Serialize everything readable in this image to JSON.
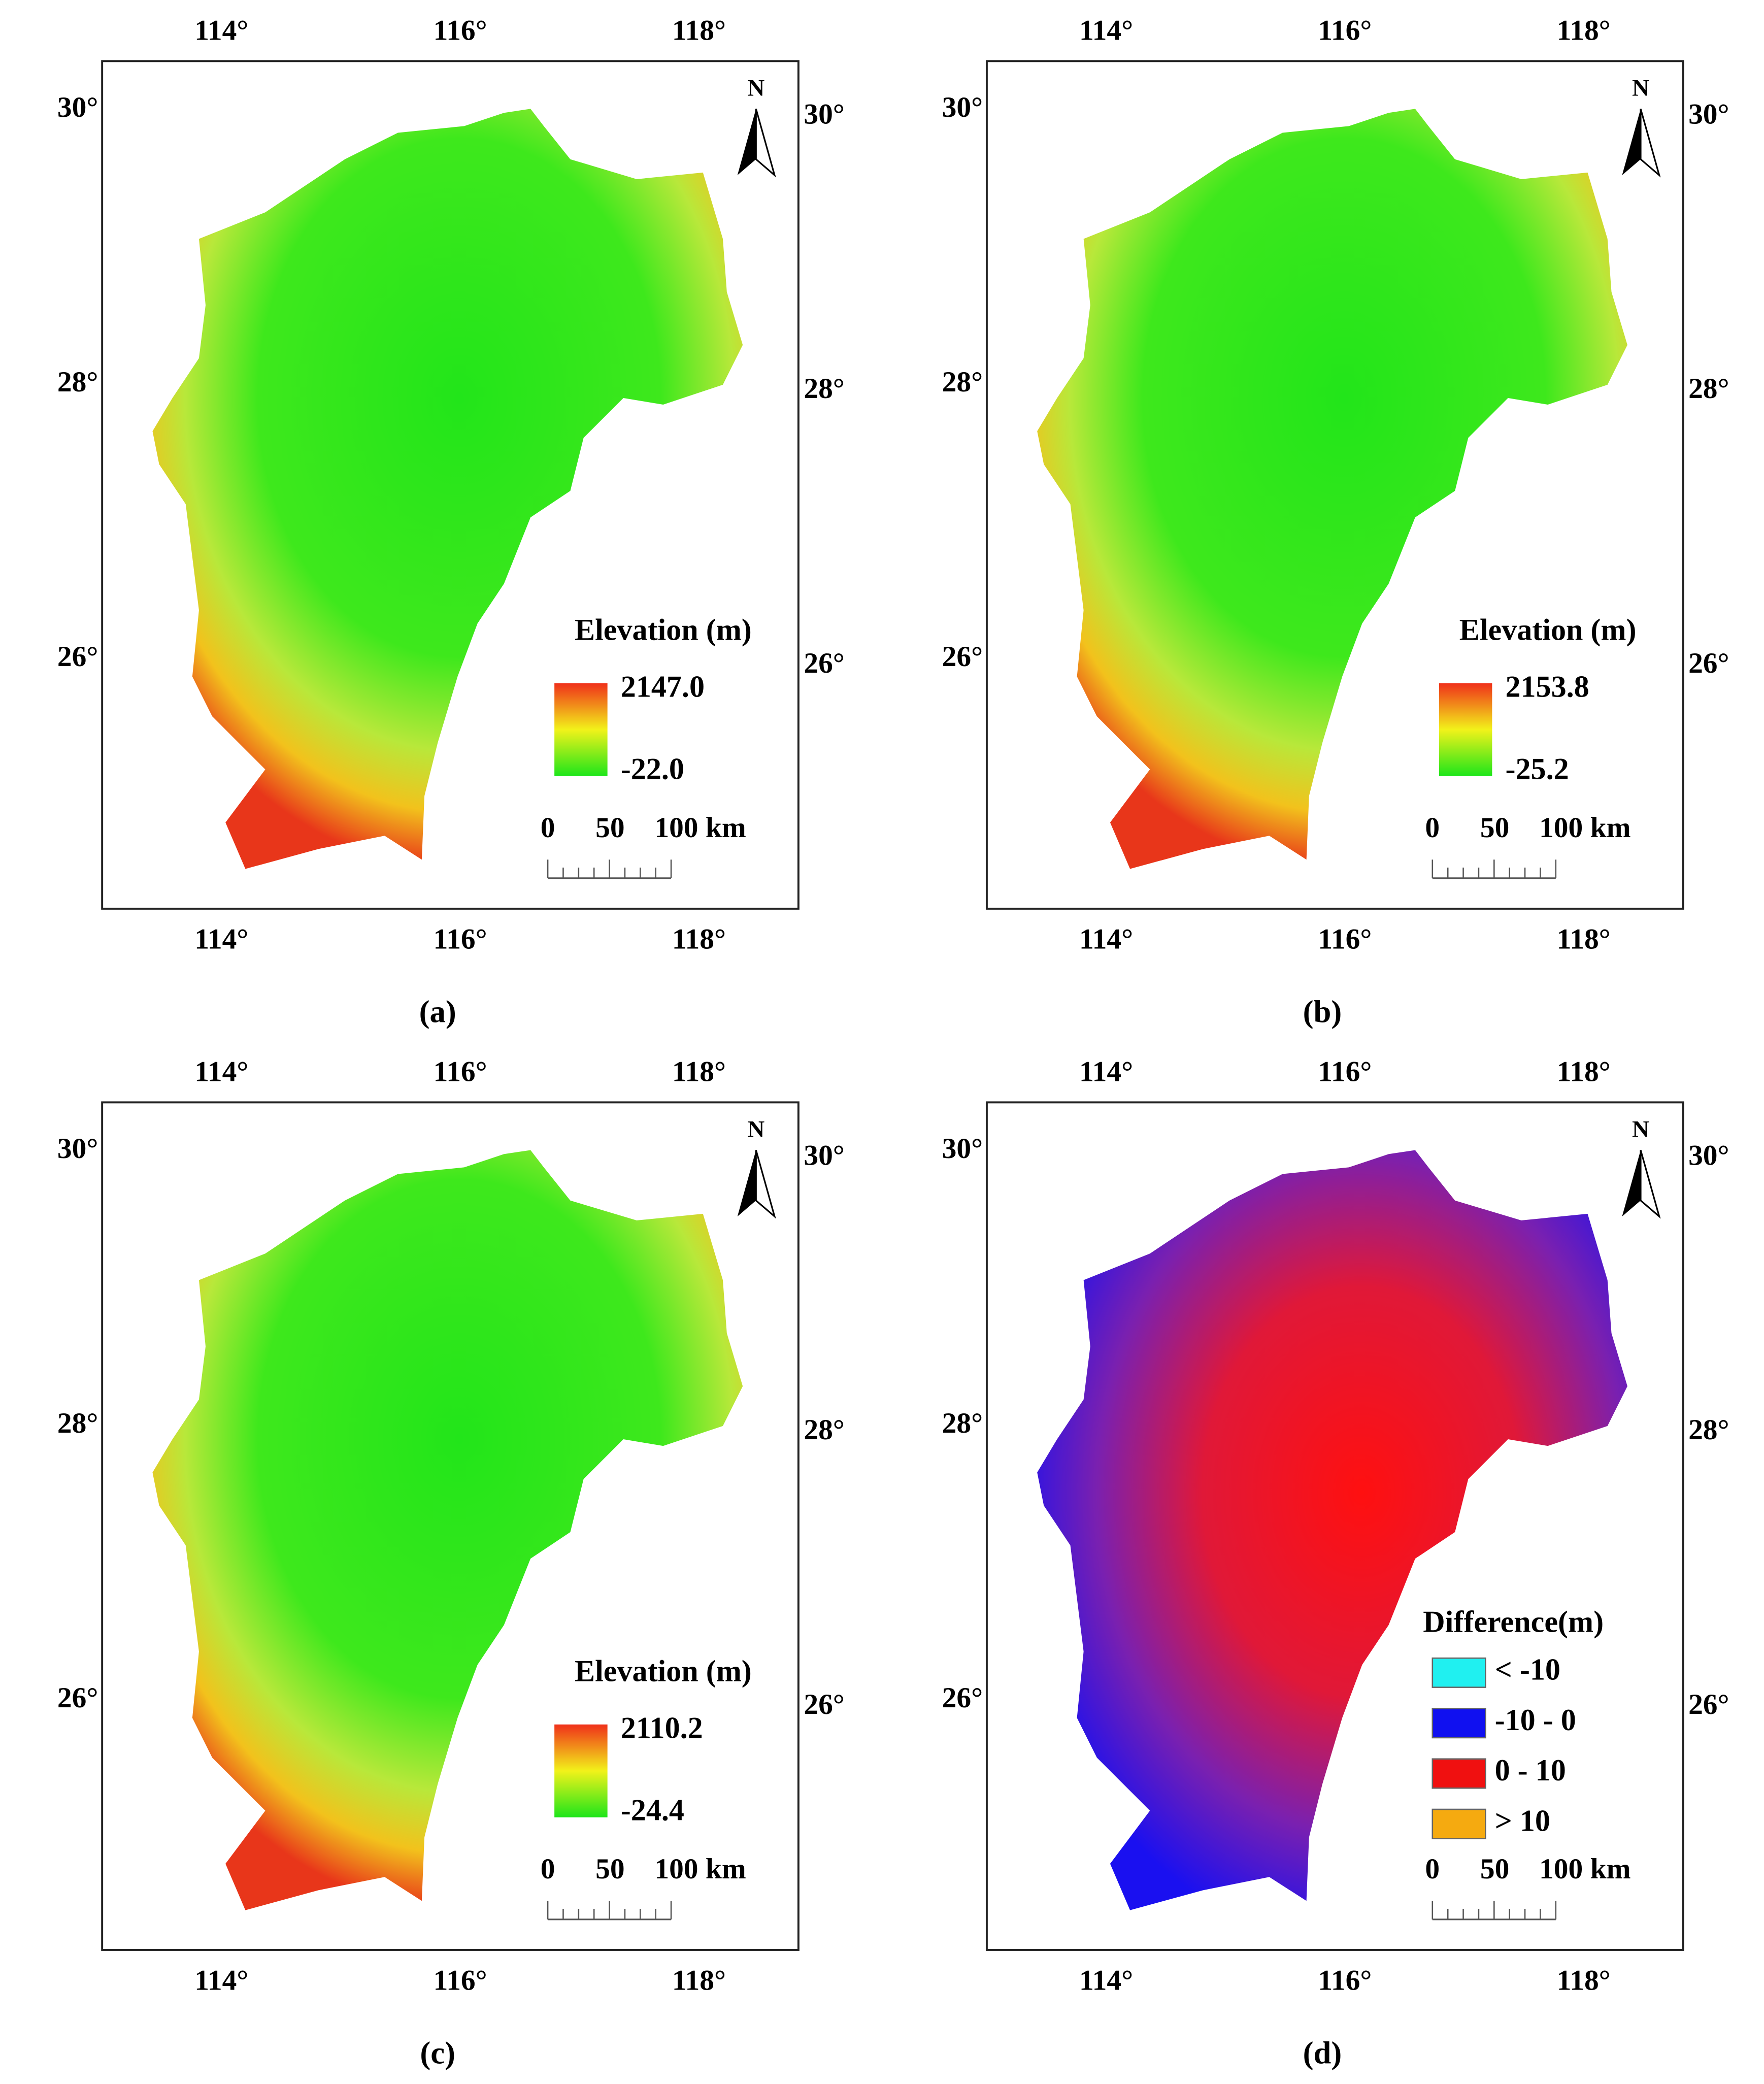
{
  "panels": [
    {
      "label": "(a)",
      "top_ticks": [
        "114°",
        "116°",
        "118°"
      ],
      "bottom_ticks": [
        "114°",
        "116°",
        "118°"
      ],
      "left_ticks": [
        "30°",
        "28°",
        "26°"
      ],
      "right_ticks": [
        "30°",
        "28°",
        "26°"
      ],
      "north": "N",
      "legend": {
        "title": "Elevation (m)",
        "max": "2147.0",
        "min": "-22.0"
      },
      "scale": [
        "0",
        "50",
        "100 km"
      ]
    },
    {
      "label": "(b)",
      "top_ticks": [
        "114°",
        "116°",
        "118°"
      ],
      "bottom_ticks": [
        "114°",
        "116°",
        "118°"
      ],
      "left_ticks": [
        "30°",
        "28°",
        "26°"
      ],
      "right_ticks": [
        "30°",
        "28°",
        "26°"
      ],
      "north": "N",
      "legend": {
        "title": "Elevation (m)",
        "max": "2153.8",
        "min": "-25.2"
      },
      "scale": [
        "0",
        "50",
        "100 km"
      ]
    },
    {
      "label": "(c)",
      "top_ticks": [
        "114°",
        "116°",
        "118°"
      ],
      "bottom_ticks": [
        "114°",
        "116°",
        "118°"
      ],
      "left_ticks": [
        "30°",
        "28°",
        "26°"
      ],
      "right_ticks": [
        "30°",
        "28°",
        "26°"
      ],
      "north": "N",
      "legend": {
        "title": "Elevation (m)",
        "max": "2110.2",
        "min": "-24.4"
      },
      "scale": [
        "0",
        "50",
        "100 km"
      ]
    },
    {
      "label": "(d)",
      "top_ticks": [
        "114°",
        "116°",
        "118°"
      ],
      "bottom_ticks": [
        "114°",
        "116°",
        "118°"
      ],
      "left_ticks": [
        "30°",
        "28°",
        "26°"
      ],
      "right_ticks": [
        "30°",
        "28°",
        "26°"
      ],
      "north": "N",
      "legend": {
        "title": "Difference(m)",
        "items": [
          "< -10",
          "-10 - 0",
          "0 - 10",
          "> 10"
        ]
      },
      "scale": [
        "0",
        "50",
        "100 km"
      ]
    }
  ]
}
